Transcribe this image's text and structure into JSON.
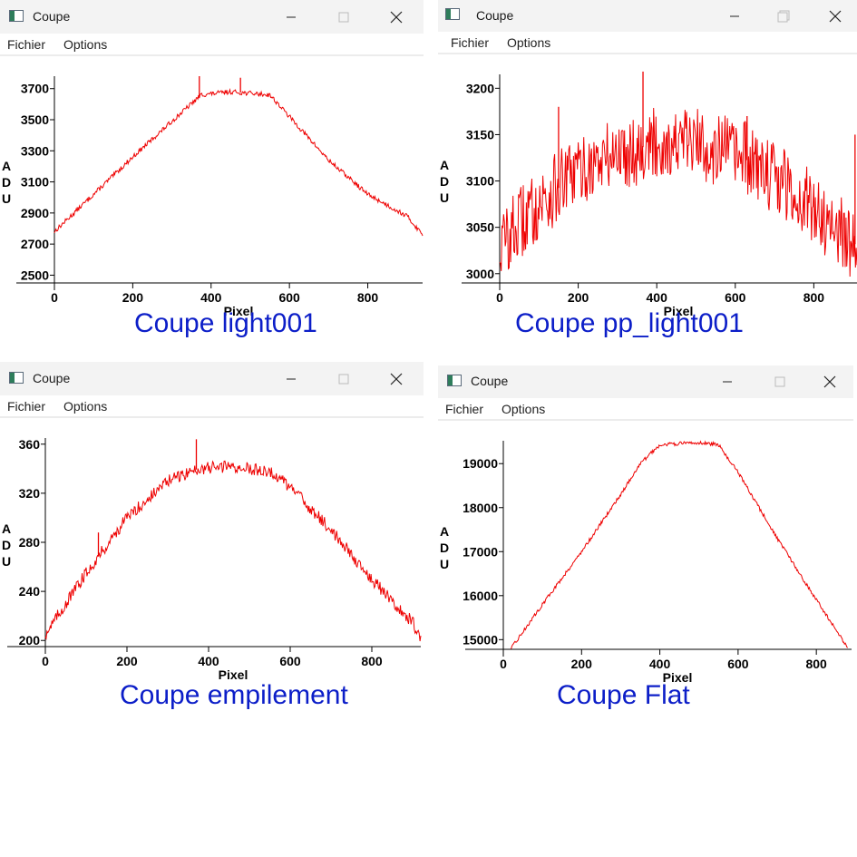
{
  "ui": {
    "menu_file": "Fichier",
    "menu_options": "Options",
    "ylabel_letters": [
      "A",
      "D",
      "U"
    ],
    "xlabel": "Pixel"
  },
  "windows": [
    {
      "title": "Coupe",
      "caption": "Coupe light001",
      "chart_data": {
        "type": "line",
        "color": "#ee0000",
        "xlabel": "Pixel",
        "ylabel": "ADU",
        "xlim": [
          0,
          940
        ],
        "ylim": [
          2450,
          3780
        ],
        "xticks": [
          0,
          200,
          400,
          600,
          800
        ],
        "yticks": [
          2500,
          2700,
          2900,
          3100,
          3300,
          3500,
          3700
        ],
        "x": [
          0,
          100,
          200,
          300,
          375,
          450,
          550,
          600,
          700,
          800,
          900,
          940
        ],
        "y": [
          2780,
          3020,
          3260,
          3490,
          3660,
          3680,
          3660,
          3520,
          3240,
          3020,
          2880,
          2760
        ],
        "noise": 15,
        "spikes": [
          {
            "x": 370,
            "y": 3780
          },
          {
            "x": 475,
            "y": 3770
          }
        ]
      }
    },
    {
      "title": "Coupe",
      "caption": "Coupe pp_light001",
      "chart_data": {
        "type": "line",
        "color": "#ee0000",
        "xlabel": "Pixel",
        "ylabel": "ADU",
        "xlim": [
          0,
          910
        ],
        "ylim": [
          2990,
          3215
        ],
        "xticks": [
          0,
          200,
          400,
          600,
          800
        ],
        "yticks": [
          3000,
          3050,
          3100,
          3150,
          3200
        ],
        "x": [
          0,
          100,
          200,
          300,
          400,
          500,
          600,
          700,
          800,
          910
        ],
        "y": [
          3030,
          3075,
          3110,
          3130,
          3140,
          3140,
          3130,
          3105,
          3070,
          3030
        ],
        "noise": 40,
        "spikes": [
          {
            "x": 150,
            "y": 3180
          },
          {
            "x": 365,
            "y": 3218
          },
          {
            "x": 630,
            "y": 3170
          },
          {
            "x": 905,
            "y": 3150
          }
        ]
      }
    },
    {
      "title": "Coupe",
      "caption": "Coupe empilement",
      "chart_data": {
        "type": "line",
        "color": "#ee0000",
        "xlabel": "Pixel",
        "ylabel": "ADU",
        "xlim": [
          0,
          920
        ],
        "ylim": [
          195,
          365
        ],
        "xticks": [
          0,
          200,
          400,
          600,
          800
        ],
        "yticks": [
          200,
          240,
          280,
          320,
          360
        ],
        "x": [
          0,
          100,
          200,
          300,
          375,
          450,
          550,
          600,
          700,
          800,
          900,
          920
        ],
        "y": [
          205,
          255,
          300,
          330,
          340,
          342,
          338,
          325,
          290,
          250,
          215,
          200
        ],
        "noise": 5,
        "spikes": [
          {
            "x": 370,
            "y": 364
          },
          {
            "x": 130,
            "y": 288
          }
        ]
      }
    },
    {
      "title": "Coupe",
      "caption": "Coupe Flat",
      "chart_data": {
        "type": "line",
        "color": "#ee0000",
        "xlabel": "Pixel",
        "ylabel": "ADU",
        "xlim": [
          0,
          890
        ],
        "ylim": [
          14780,
          19520
        ],
        "xticks": [
          0,
          200,
          400,
          600,
          800
        ],
        "yticks": [
          15000,
          16000,
          17000,
          18000,
          19000
        ],
        "x": [
          20,
          100,
          200,
          300,
          350,
          400,
          500,
          550,
          600,
          700,
          800,
          880
        ],
        "y": [
          14800,
          15800,
          17000,
          18300,
          19000,
          19430,
          19480,
          19430,
          18800,
          17300,
          15900,
          14820
        ],
        "noise": 40,
        "spikes": []
      }
    }
  ]
}
